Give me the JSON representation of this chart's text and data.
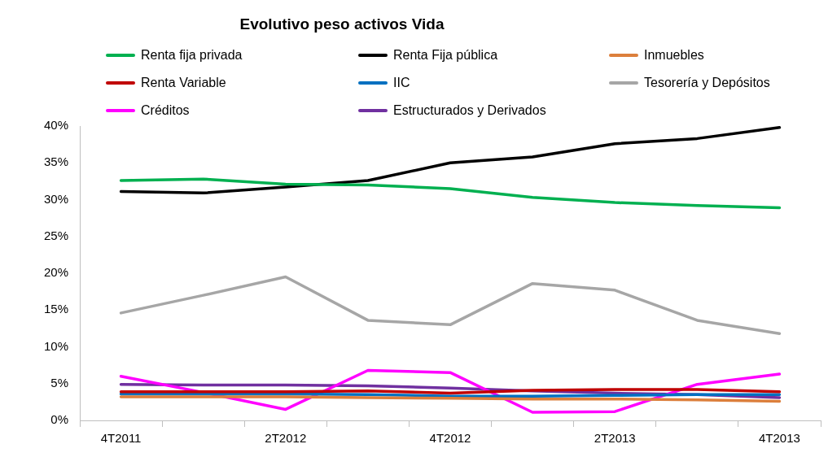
{
  "chart_data": {
    "type": "line",
    "title": "Evolutivo peso activos Vida",
    "categories": [
      "4T2011",
      null,
      "2T2012",
      null,
      "4T2012",
      null,
      "2T2013",
      null,
      "4T2013"
    ],
    "series": [
      {
        "name": "Renta fija privada",
        "color": "#00b050",
        "values": [
          32.6,
          32.8,
          32.1,
          32.0,
          31.5,
          30.3,
          29.6,
          29.2,
          28.9
        ]
      },
      {
        "name": "Renta Fija pública",
        "color": "#000000",
        "values": [
          31.1,
          30.9,
          31.7,
          32.6,
          35.0,
          35.8,
          37.6,
          38.3,
          39.8
        ]
      },
      {
        "name": "Inmuebles",
        "color": "#dc7f3c",
        "values": [
          3.2,
          3.2,
          3.2,
          3.1,
          3.0,
          2.9,
          2.9,
          2.8,
          2.6
        ]
      },
      {
        "name": "Renta Variable",
        "color": "#c00000",
        "values": [
          3.9,
          3.9,
          3.9,
          4.0,
          3.7,
          4.1,
          4.2,
          4.2,
          3.9
        ]
      },
      {
        "name": "IIC",
        "color": "#0070c0",
        "values": [
          3.6,
          3.6,
          3.6,
          3.5,
          3.3,
          3.3,
          3.4,
          3.5,
          3.5
        ]
      },
      {
        "name": "Tesorería y Depósitos",
        "color": "#a6a6a6",
        "values": [
          14.6,
          17.0,
          19.5,
          13.6,
          13.0,
          18.6,
          17.7,
          13.6,
          11.8
        ]
      },
      {
        "name": "Créditos",
        "color": "#ff00ff",
        "values": [
          6.0,
          3.8,
          1.5,
          6.8,
          6.5,
          1.1,
          1.2,
          4.9,
          6.3
        ]
      },
      {
        "name": "Estructurados y Derivados",
        "color": "#7030a0",
        "values": [
          4.9,
          4.8,
          4.8,
          4.7,
          4.4,
          4.0,
          3.7,
          3.5,
          3.1
        ]
      }
    ],
    "ylim": [
      0,
      40
    ],
    "yticks": [
      {
        "value": 0,
        "label": "0%"
      },
      {
        "value": 5,
        "label": "5%"
      },
      {
        "value": 10,
        "label": "10%"
      },
      {
        "value": 15,
        "label": "15%"
      },
      {
        "value": 20,
        "label": "20%"
      },
      {
        "value": 25,
        "label": "25%"
      },
      {
        "value": 30,
        "label": "30%"
      },
      {
        "value": 35,
        "label": "35%"
      },
      {
        "value": 40,
        "label": "40%"
      }
    ],
    "grid": false,
    "legend": "top",
    "marker": "none",
    "line_style": "solid"
  }
}
